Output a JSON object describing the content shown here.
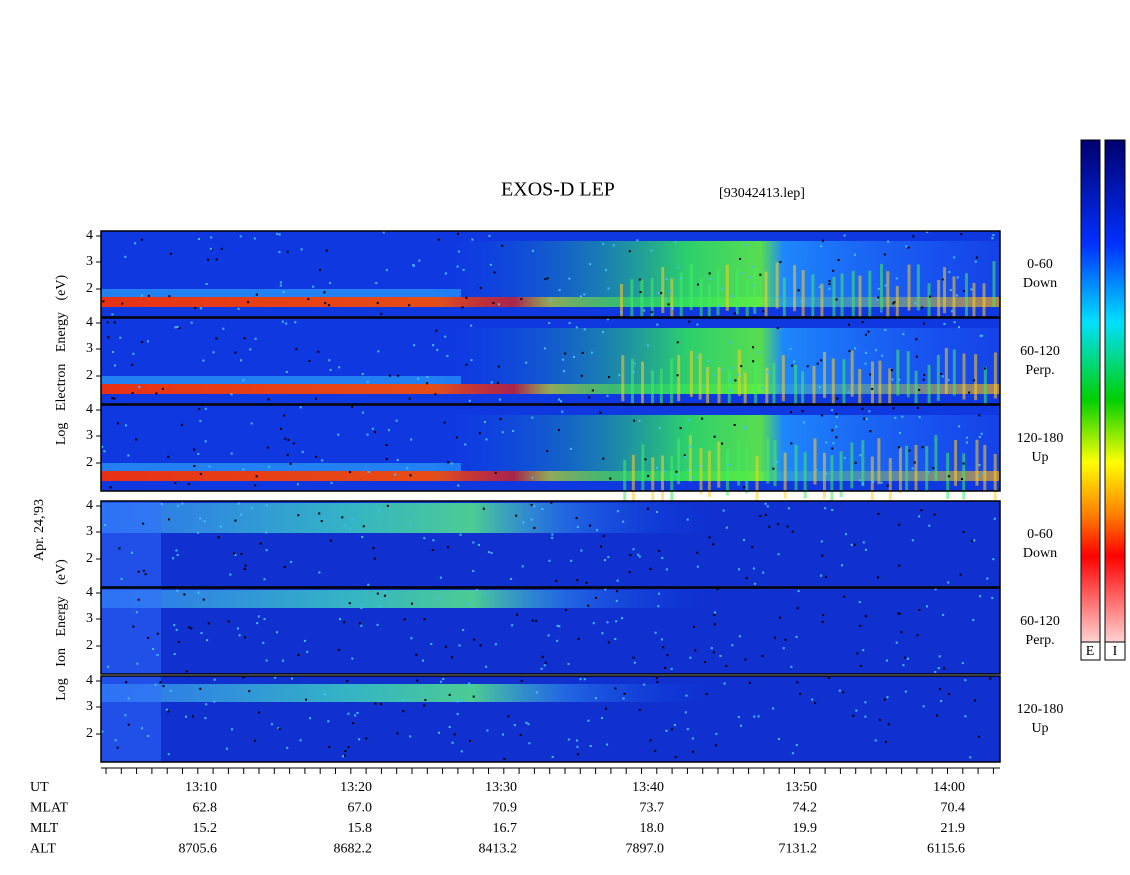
{
  "title": "EXOS-D LEP",
  "file": "[93042413.lep]",
  "electron_axis_label": "Log Electron Energy (eV)",
  "ion_axis_label": "Log Ion Energy (eV)",
  "date": "Apr. 24,'93",
  "electron_panels": [
    {
      "label": [
        "0-60",
        "Down"
      ],
      "yticks": [
        "4",
        "3",
        "2"
      ]
    },
    {
      "label": [
        "60-120",
        "Perp."
      ],
      "yticks": [
        "4",
        "3",
        "2"
      ]
    },
    {
      "label": [
        "120-180",
        "Up"
      ],
      "yticks": [
        "4",
        "3",
        "2"
      ]
    }
  ],
  "ion_panels": [
    {
      "label": [
        "0-60",
        "Down"
      ],
      "yticks": [
        "4",
        "3",
        "2"
      ]
    },
    {
      "label": [
        "60-120",
        "Perp."
      ],
      "yticks": [
        "4",
        "3",
        "2"
      ]
    },
    {
      "label": [
        "120-180",
        "Up"
      ],
      "yticks": [
        "4",
        "3",
        "2"
      ]
    }
  ],
  "colorbar_labels": [
    "E",
    "I"
  ],
  "orbit": {
    "rows": [
      {
        "name": "UT",
        "values": [
          "13:10",
          "13:20",
          "13:30",
          "13:40",
          "13:50",
          "14:00"
        ]
      },
      {
        "name": "MLAT",
        "values": [
          "62.8",
          "67.0",
          "70.9",
          "73.7",
          "74.2",
          "70.4"
        ]
      },
      {
        "name": "MLT",
        "values": [
          "15.2",
          "15.8",
          "16.7",
          "18.0",
          "19.9",
          "21.9"
        ]
      },
      {
        "name": "ALT",
        "values": [
          "8705.6",
          "8682.2",
          "8413.2",
          "7897.0",
          "7131.2",
          "6115.6"
        ]
      }
    ]
  }
}
